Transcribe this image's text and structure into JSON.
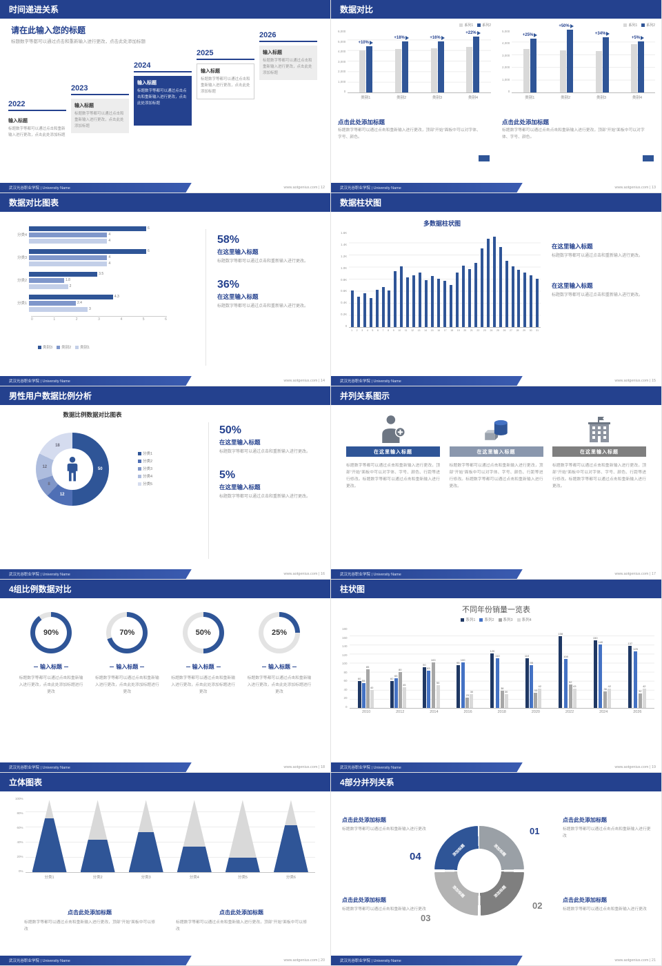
{
  "footer": {
    "org": "武汉光谷职业学院 | University Name"
  },
  "slides": {
    "s12": {
      "header": "时间递进关系",
      "footer_right": "www.aotgenius.com | 12",
      "heading": "请在此输入您的标题",
      "heading_body": "标题数字等都可以通过点击和重新输入进行更改，点击此处添加标题",
      "steps": [
        {
          "year": "2022",
          "title": "输入标题",
          "body": "标题数字等都可以通过点击和重新输入进行更改，点击此处添加标题"
        },
        {
          "year": "2023",
          "title": "输入标题",
          "body": "标题数字等都可以通过点击和重新输入进行更改，点击此处添加标题"
        },
        {
          "year": "2024",
          "title": "输入标题",
          "body": "标题数字等都可以通过点击点击和重新输入进行更改，点击此处添加标题"
        },
        {
          "year": "2025",
          "title": "输入标题",
          "body": "标题数字等都可以通过点击和重新输入进行更改，点击此处添加标题"
        },
        {
          "year": "2026",
          "title": "输入标题",
          "body": "标题数字等都可以通过点击和重新输入进行更改，点击此处添加标题"
        }
      ]
    },
    "s13": {
      "header": "数据对比",
      "footer_right": "www.aotgenius.com | 13",
      "left": {
        "title": "点击此处添加标题",
        "body": "标题数字等都可以通过点击和重新输入进行更改，顶部“开始”面板中可以对字体、字号、颜色。"
      },
      "right": {
        "title": "点击此处添加标题",
        "body": "标题数字等都可以通过点击点击和重新输入进行更改，顶部“开始”面板中可以对字体、字号、颜色。"
      }
    },
    "s14": {
      "header": "数据对比图表",
      "footer_right": "www.aotgenius.com | 14",
      "stat1": {
        "value": "58%",
        "title": "在这里输入标题",
        "body": "标题数字等都可以通过点击和重新输入进行更改。"
      },
      "stat2": {
        "value": "36%",
        "title": "在这里输入标题",
        "body": "标题数字等都可以通过点击和重新输入进行更改。"
      }
    },
    "s15": {
      "header": "数据柱状图",
      "footer_right": "www.aotgenius.com | 15",
      "chart_title": "多数据柱状图",
      "block1": {
        "title": "在这里输入标题",
        "body": "标题数字等都可以通过点击和重新输入进行更改。"
      },
      "block2": {
        "title": "在这里输入标题",
        "body": "标题数字等都可以通过点击和重新输入进行更改。"
      }
    },
    "s16": {
      "header": "男性用户数据比例分析",
      "footer_right": "www.aotgenius.com | 16",
      "chart_title": "数据比例数据对比图表",
      "stat1": {
        "value": "50%",
        "title": "在这里输入标题",
        "body": "标题数字等都可以通过点击和重新输入进行更改。"
      },
      "stat2": {
        "value": "5%",
        "title": "在这里输入标题",
        "body": "标题数字等都可以通过点击和重新输入进行更改。"
      }
    },
    "s17": {
      "header": "并列关系图示",
      "footer_right": "www.aotgenius.com | 17",
      "cols": [
        {
          "title": "在这里输入标题",
          "body": "标题数字等都可以通过点击和重新输入进行更改，顶部“开始”面板中可以对字体、字号、颜色、行距等进行修改。标题数字等都可以通过点击和重新输入进行更改。"
        },
        {
          "title": "在这里输入标题",
          "body": "标题数字等都可以通过点击和重新输入进行更改，顶部“开始”面板中可以对字体、字号、颜色、行距等进行修改。标题数字等都可以通过点击和重新输入进行更改。"
        },
        {
          "title": "在这里输入标题",
          "body": "标题数字等都可以通过点击和重新输入进行更改，顶部“开始”面板中可以对字体、字号、颜色、行距等进行修改。标题数字等都可以通过点击和重新输入进行更改。"
        }
      ]
    },
    "s18": {
      "header": "4组比例数据对比",
      "footer_right": "www.aotgenius.com | 18",
      "items": [
        {
          "pct": "90%",
          "title": "输入标题",
          "body": "标题数字等都可以通过点击和重新输入进行更改，点击此处添加标题进行更改"
        },
        {
          "pct": "70%",
          "title": "输入标题",
          "body": "标题数字等都可以通过点击和重新输入进行更改，点击此处添加标题进行更改"
        },
        {
          "pct": "50%",
          "title": "输入标题",
          "body": "标题数字等都可以通过点击和重新输入进行更改，点击此处添加标题进行更改"
        },
        {
          "pct": "25%",
          "title": "输入标题",
          "body": "标题数字等都可以通过点击和重新输入进行更改，点击此处添加标题进行更改"
        }
      ]
    },
    "s19": {
      "header": "柱状图",
      "footer_right": "www.aotgenius.com | 19",
      "chart_title": "不同年份销量一览表"
    },
    "s20": {
      "header": "立体图表",
      "footer_right": "www.aotgenius.com | 20",
      "block1": {
        "title": "点击此处添加标题",
        "body": "标题数字等都可以通过点击和重新输入进行更改，顶部“开始”面板中可以修改"
      },
      "block2": {
        "title": "点击此处添加标题",
        "body": "标题数字等都可以通过点击和重新输入进行更改，顶部“开始”面板中可以修改"
      }
    },
    "s21": {
      "header": "4部分并列关系",
      "footer_right": "www.aotgenius.com | 21",
      "blocks": [
        {
          "title": "点击此处添加标题",
          "body": "标题数字等都可以通过点击和重新输入进行更改"
        },
        {
          "title": "点击此处添加标题",
          "body": "标题数字等都可以通过点击点击和重新输入进行更改"
        },
        {
          "title": "点击此处添加标题",
          "body": "标题数字等都可以通过点击和重新输入进行更改"
        },
        {
          "title": "点击此处添加标题",
          "body": "标题数字等都可以通过点击和重新输入进行更改"
        }
      ],
      "numbers": [
        "01",
        "02",
        "03",
        "04"
      ],
      "segments": [
        "添加标题",
        "添加标题",
        "添加标题",
        "添加标题"
      ]
    }
  },
  "chart_data": {
    "s13a": {
      "type": "bar",
      "categories": [
        "类别1",
        "类别2",
        "类别3",
        "类别4"
      ],
      "series": [
        {
          "name": "系列1",
          "color": "#d9d9d9",
          "values": [
            4000,
            4100,
            4150,
            4300
          ]
        },
        {
          "name": "系列2",
          "color": "#2f5597",
          "values": [
            4400,
            4850,
            4800,
            5250
          ]
        }
      ],
      "annotations": [
        "+10%",
        "+18%",
        "+16%",
        "+22%"
      ],
      "ylim": [
        0,
        6000
      ],
      "yticks": [
        "6,000",
        "5,000",
        "4,000",
        "3,000",
        "2,000",
        "1,000",
        "0"
      ],
      "h": 92,
      "bw": 9
    },
    "s13b": {
      "type": "bar",
      "categories": [
        "类别1",
        "类别2",
        "类别3",
        "类别4"
      ],
      "series": [
        {
          "name": "系列1",
          "color": "#d9d9d9",
          "values": [
            3400,
            3300,
            3250,
            3800
          ]
        },
        {
          "name": "系列2",
          "color": "#2f5597",
          "values": [
            4250,
            4950,
            4350,
            4000
          ]
        }
      ],
      "annotations": [
        "+25%",
        "+50%",
        "+34%",
        "+5%"
      ],
      "ylim": [
        0,
        5000
      ],
      "yticks": [
        "5,000",
        "4,000",
        "3,000",
        "2,000",
        "1,000",
        "0"
      ],
      "h": 92,
      "bw": 9
    },
    "s14": {
      "type": "hbar",
      "categories": [
        "分类4",
        "分类3",
        "分类2",
        "分类1"
      ],
      "series": [
        {
          "name": "类别3",
          "color": "#2f5597",
          "values": [
            6,
            6,
            3.5,
            4.3
          ]
        },
        {
          "name": "类别2",
          "color": "#7f97cb",
          "values": [
            4,
            4,
            1.8,
            2.4
          ]
        },
        {
          "name": "类别1",
          "color": "#c3cfe8",
          "values": [
            4,
            4,
            2,
            3
          ]
        }
      ],
      "xlim": [
        0,
        6
      ],
      "xticks": [
        "0",
        "1",
        "2",
        "3",
        "4",
        "5",
        "6"
      ],
      "w": 170
    },
    "s15": {
      "type": "bar",
      "title": "多数据柱状图",
      "categories": [
        "1",
        "2",
        "3",
        "4",
        "5",
        "6",
        "7",
        "8",
        "9",
        "10",
        "11",
        "12",
        "13",
        "14",
        "15",
        "16",
        "17",
        "18",
        "19",
        "20",
        "21",
        "22",
        "23",
        "24",
        "25",
        "26",
        "27",
        "28",
        "29",
        "30",
        "31"
      ],
      "series": [
        {
          "name": "数据",
          "color": "#2f5597",
          "values": [
            600,
            500,
            560,
            480,
            620,
            660,
            600,
            920,
            1000,
            820,
            860,
            900,
            780,
            840,
            800,
            760,
            700,
            900,
            1020,
            960,
            1060,
            1300,
            1460,
            1500,
            1320,
            1100,
            1000,
            950,
            900,
            860,
            800
          ]
        }
      ],
      "ylim": [
        0,
        1600
      ],
      "yticks": [
        "1.6K",
        "1.4K",
        "1.2K",
        "1.0K",
        "0.8K",
        "0.6K",
        "0.4K",
        "0.2K",
        "0"
      ],
      "h": 140,
      "bw": 4,
      "xfs": 3.5
    },
    "s16": {
      "type": "donut",
      "legend": [
        "分类1",
        "分类2",
        "分类3",
        "分类4",
        "分类5"
      ],
      "values": [
        50,
        12,
        8,
        12,
        18
      ],
      "colors": [
        "#2f5597",
        "#4f6fb5",
        "#8096c8",
        "#aebdde",
        "#d5dcef"
      ],
      "total": 100
    },
    "s18": {
      "type": "donut",
      "note": "four progress rings",
      "values": [
        90,
        70,
        50,
        25
      ]
    },
    "s19": {
      "type": "bar",
      "title": "不同年份销量一览表",
      "categories": [
        "2010",
        "2012",
        "2014",
        "2016",
        "2018",
        "2020",
        "2022",
        "2024",
        "2026"
      ],
      "series": [
        {
          "name": "系列1",
          "color": "#1f3864",
          "values": [
            60,
            60,
            90,
            95,
            120,
            110,
            158,
            150,
            137
          ]
        },
        {
          "name": "系列2",
          "color": "#4472c4",
          "values": [
            55,
            65,
            83,
            100,
            110,
            95,
            108,
            140,
            125
          ]
        },
        {
          "name": "系列3",
          "color": "#a6a6a6",
          "values": [
            85,
            80,
            100,
            23,
            38,
            33,
            52,
            36,
            32
          ]
        },
        {
          "name": "系列4",
          "color": "#d9d9d9",
          "values": [
            40,
            45,
            50,
            30,
            30,
            42,
            43,
            42,
            42
          ]
        }
      ],
      "ylim": [
        0,
        180
      ],
      "yticks": [
        "180",
        "160",
        "140",
        "120",
        "100",
        "80",
        "60",
        "40",
        "20",
        "0"
      ],
      "h": 118,
      "bw": 5,
      "labels": true,
      "xfs": 5.5
    },
    "s20": {
      "type": "cones",
      "categories": [
        "分类1",
        "分类2",
        "分类3",
        "分类4",
        "分类5",
        "分类6"
      ],
      "values": [
        75,
        45,
        55,
        35,
        20,
        65
      ],
      "yticks": [
        "100%",
        "80%",
        "60%",
        "40%",
        "20%",
        "0%"
      ],
      "h": 110
    }
  }
}
